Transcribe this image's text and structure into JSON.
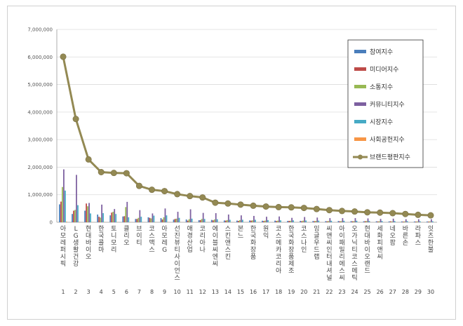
{
  "chart_data": {
    "type": "bar",
    "title": "",
    "xlabel": "",
    "ylabel": "",
    "ylim": [
      0,
      7000000
    ],
    "yticks": [
      "0",
      "1,000,000",
      "2,000,000",
      "3,000,000",
      "4,000,000",
      "5,000,000",
      "6,000,000",
      "7,000,000"
    ],
    "grid": true,
    "legend_position": "top-right",
    "ranks": [
      "1",
      "2",
      "3",
      "4",
      "5",
      "6",
      "7",
      "8",
      "9",
      "10",
      "11",
      "12",
      "13",
      "14",
      "15",
      "16",
      "17",
      "18",
      "19",
      "20",
      "21",
      "22",
      "23",
      "24",
      "25",
      "26",
      "27",
      "28",
      "29",
      "30"
    ],
    "categories": [
      "아모레퍼시픽",
      "LG생활건강",
      "현대바이오",
      "한국콜마",
      "토니모리",
      "클리오",
      "브이티",
      "코스맥스",
      "아모레G",
      "선진뷰티사이언스",
      "애경산업",
      "코리아나",
      "에이블씨엔씨",
      "스킨앤스킨",
      "본느",
      "한국화장품",
      "원익",
      "코스메카코리아",
      "한국화장품제조",
      "코스나인",
      "잉글우드랩",
      "씨앤씨인터내셔널",
      "아이패밀리에스씨",
      "오가닉티코스메틱",
      "현대바이오랜드",
      "세화피앤씨",
      "네오팜",
      "바른손",
      "라파스",
      "잇츠한불"
    ],
    "series": [
      {
        "name": "참여지수",
        "color": "#4a7ebb",
        "type": "bar",
        "values": [
          650000,
          300000,
          420000,
          280000,
          250000,
          210000,
          120000,
          180000,
          150000,
          95000,
          100000,
          75000,
          85000,
          65000,
          60000,
          65000,
          55000,
          60000,
          48000,
          50000,
          45000,
          40000,
          45000,
          40000,
          35000,
          35000,
          30000,
          30000,
          28000,
          28000
        ]
      },
      {
        "name": "미디어지수",
        "color": "#be4b48",
        "type": "bar",
        "values": [
          750000,
          420000,
          680000,
          200000,
          350000,
          220000,
          120000,
          160000,
          100000,
          120000,
          60000,
          80000,
          70000,
          60000,
          50000,
          60000,
          45000,
          45000,
          50000,
          40000,
          40000,
          35000,
          35000,
          35000,
          40000,
          30000,
          35000,
          25000,
          25000,
          25000
        ]
      },
      {
        "name": "소통지수",
        "color": "#98b954",
        "type": "bar",
        "values": [
          1280000,
          450000,
          580000,
          170000,
          380000,
          550000,
          160000,
          140000,
          180000,
          130000,
          110000,
          120000,
          100000,
          80000,
          80000,
          70000,
          60000,
          60000,
          55000,
          60000,
          50000,
          45000,
          40000,
          40000,
          45000,
          35000,
          30000,
          30000,
          30000,
          30000
        ]
      },
      {
        "name": "커뮤니티지수",
        "color": "#7d60a0",
        "type": "bar",
        "values": [
          1920000,
          1720000,
          700000,
          640000,
          480000,
          740000,
          440000,
          320000,
          500000,
          380000,
          470000,
          340000,
          330000,
          280000,
          250000,
          230000,
          200000,
          210000,
          160000,
          190000,
          170000,
          150000,
          150000,
          150000,
          140000,
          120000,
          130000,
          110000,
          110000,
          110000
        ]
      },
      {
        "name": "시장지수",
        "color": "#46aac5",
        "type": "bar",
        "values": [
          1150000,
          620000,
          320000,
          330000,
          300000,
          180000,
          200000,
          240000,
          250000,
          160000,
          130000,
          120000,
          110000,
          90000,
          90000,
          90000,
          80000,
          70000,
          70000,
          65000,
          60000,
          55000,
          55000,
          55000,
          45000,
          45000,
          45000,
          40000,
          35000,
          35000
        ]
      },
      {
        "name": "사회공헌지수",
        "color": "#f79646",
        "type": "bar",
        "values": [
          20000,
          15000,
          8000,
          10000,
          8000,
          8000,
          5000,
          8000,
          10000,
          5000,
          8000,
          5000,
          5000,
          5000,
          4000,
          5000,
          3000,
          4000,
          3000,
          3000,
          3000,
          3000,
          3000,
          3000,
          3000,
          2000,
          3000,
          2000,
          2000,
          2000
        ]
      },
      {
        "name": "브랜드평판지수",
        "color": "#938953",
        "type": "line",
        "values": [
          6010000,
          3750000,
          2280000,
          1820000,
          1790000,
          1780000,
          1320000,
          1180000,
          1130000,
          1020000,
          950000,
          900000,
          710000,
          680000,
          640000,
          600000,
          570000,
          550000,
          540000,
          520000,
          480000,
          440000,
          410000,
          390000,
          360000,
          350000,
          330000,
          300000,
          270000,
          250000
        ]
      }
    ]
  }
}
